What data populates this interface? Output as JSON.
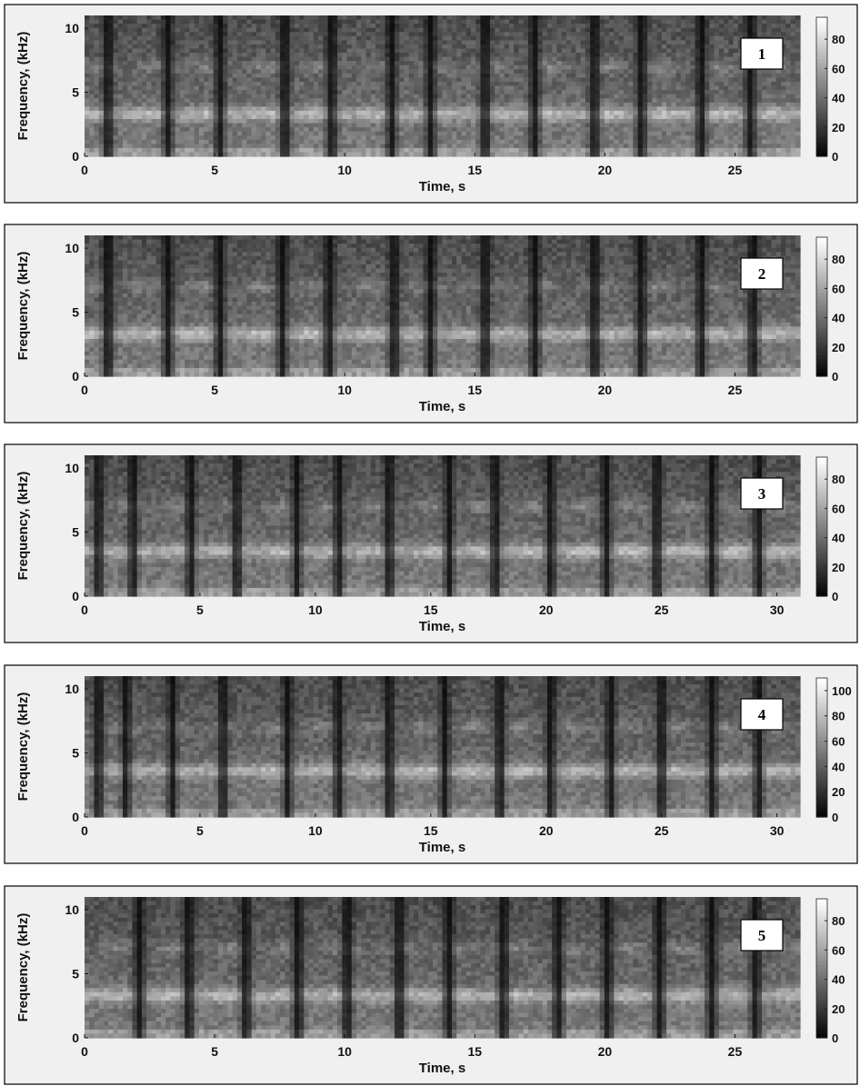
{
  "figure": {
    "colormap": "gray",
    "frame_color": "#000000",
    "panel_background": "#f0f0f0"
  },
  "chart_data": [
    {
      "type": "heatmap",
      "panel_label": "1",
      "xlabel": "Time, s",
      "ylabel": "Frequency, (kHz)",
      "xlim": [
        0,
        27.5
      ],
      "ylim": [
        0,
        11
      ],
      "xticks": [
        0,
        5,
        10,
        15,
        20,
        25
      ],
      "yticks": [
        0,
        5,
        10
      ],
      "colorbar": {
        "min": 0,
        "max": 95,
        "ticks": [
          0,
          20,
          40,
          60,
          80
        ]
      },
      "formant_bands_khz": [
        3.3,
        7.0
      ],
      "pause_times_s": [
        0.9,
        3.2,
        5.2,
        7.7,
        9.5,
        11.8,
        13.3,
        15.4,
        17.3,
        19.6,
        21.4,
        23.7,
        25.6
      ]
    },
    {
      "type": "heatmap",
      "panel_label": "2",
      "xlabel": "Time, s",
      "ylabel": "Frequency, (kHz)",
      "xlim": [
        0,
        27.5
      ],
      "ylim": [
        0,
        11
      ],
      "xticks": [
        0,
        5,
        10,
        15,
        20,
        25
      ],
      "yticks": [
        0,
        5,
        10
      ],
      "colorbar": {
        "min": 0,
        "max": 95,
        "ticks": [
          0,
          20,
          40,
          60,
          80
        ]
      },
      "formant_bands_khz": [
        3.3,
        7.0
      ],
      "pause_times_s": [
        0.9,
        3.2,
        5.2,
        7.6,
        9.4,
        11.9,
        13.3,
        15.4,
        17.3,
        19.6,
        21.4,
        23.7,
        25.7
      ]
    },
    {
      "type": "heatmap",
      "panel_label": "3",
      "xlabel": "Time, s",
      "ylabel": "Frequency, (kHz)",
      "xlim": [
        0,
        31
      ],
      "ylim": [
        0,
        11
      ],
      "xticks": [
        0,
        5,
        10,
        15,
        20,
        25,
        30
      ],
      "yticks": [
        0,
        5,
        10
      ],
      "colorbar": {
        "min": 0,
        "max": 95,
        "ticks": [
          0,
          20,
          40,
          60,
          80
        ]
      },
      "formant_bands_khz": [
        3.5,
        7.0
      ],
      "pause_times_s": [
        0.6,
        2.1,
        4.6,
        6.6,
        9.2,
        11.0,
        13.2,
        15.8,
        17.8,
        20.2,
        22.6,
        24.8,
        27.2,
        29.2
      ]
    },
    {
      "type": "heatmap",
      "panel_label": "4",
      "xlabel": "Time, s",
      "ylabel": "Frequency, (kHz)",
      "xlim": [
        0,
        31
      ],
      "ylim": [
        0,
        11
      ],
      "xticks": [
        0,
        5,
        10,
        15,
        20,
        25,
        30
      ],
      "yticks": [
        0,
        5,
        10
      ],
      "colorbar": {
        "min": 0,
        "max": 110,
        "ticks": [
          0,
          20,
          40,
          60,
          80,
          100
        ]
      },
      "formant_bands_khz": [
        3.6,
        7.0
      ],
      "pause_times_s": [
        0.6,
        1.8,
        3.8,
        6.0,
        8.8,
        11.0,
        13.2,
        15.6,
        18.0,
        20.2,
        22.8,
        25.0,
        27.2,
        29.2
      ]
    },
    {
      "type": "heatmap",
      "panel_label": "5",
      "xlabel": "Time, s",
      "ylabel": "Frequency, (kHz)",
      "xlim": [
        0,
        27.5
      ],
      "ylim": [
        0,
        11
      ],
      "xticks": [
        0,
        5,
        10,
        15,
        20,
        25
      ],
      "yticks": [
        0,
        5,
        10
      ],
      "colorbar": {
        "min": 0,
        "max": 95,
        "ticks": [
          0,
          20,
          40,
          60,
          80
        ]
      },
      "formant_bands_khz": [
        3.3,
        7.0
      ],
      "pause_times_s": [
        2.1,
        4.0,
        6.2,
        8.2,
        10.1,
        12.1,
        14.0,
        16.1,
        18.2,
        20.1,
        22.1,
        24.1,
        25.8
      ]
    }
  ]
}
